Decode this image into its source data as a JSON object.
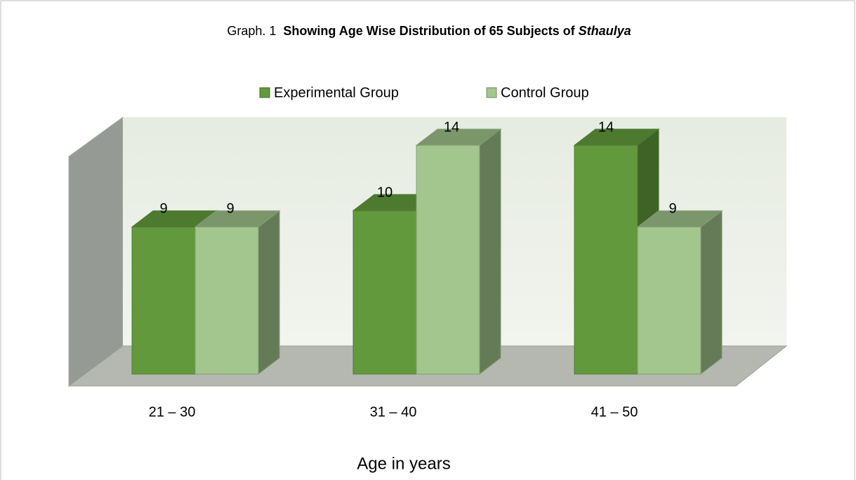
{
  "chart_data": {
    "type": "bar3d",
    "title": [
      "Graph. 1",
      "Showing Age Wise Distribution of 65 Subjects of",
      "Sthaulya"
    ],
    "xlabel": "Age in years",
    "categories": [
      "21 – 30",
      "31 – 40",
      "41 – 50"
    ],
    "series": [
      {
        "name": "Experimental Group",
        "color": "#62993c",
        "values": [
          9,
          10,
          14
        ]
      },
      {
        "name": "Control Group",
        "color": "#a3c68e",
        "values": [
          9,
          14,
          9
        ]
      }
    ],
    "ylim": [
      0,
      14
    ],
    "legend": "top"
  }
}
